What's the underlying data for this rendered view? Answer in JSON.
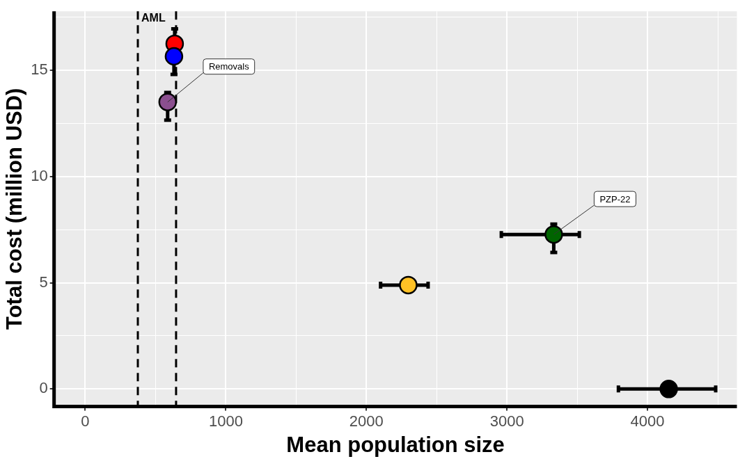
{
  "chart_data": {
    "type": "scatter",
    "xlabel": "Mean population size",
    "ylabel": "Total cost (million USD)",
    "x": [
      636,
      631,
      586,
      2298,
      3333,
      4151
    ],
    "series": [
      {
        "colors": [
          "#ff0000",
          "#0000ff",
          "#8b4f8f",
          "#ffc125",
          "#006400",
          "#000000"
        ],
        "values": [
          16.24,
          15.65,
          13.5,
          4.89,
          7.27,
          0
        ],
        "errors": [
          0.7,
          0.85,
          [
            12.65,
            13.95
          ],
          null,
          [
            6.42,
            7.76
          ],
          null
        ],
        "xerrors": [
          null,
          null,
          null,
          [
            2101,
            2439
          ],
          [
            2960,
            3515
          ],
          [
            3793,
            4485
          ]
        ]
      }
    ],
    "xlim": [
      -222,
      4636
    ],
    "ylim": [
      -0.82,
      17.77
    ],
    "xticks": [
      0,
      {
        "value": 500,
        "label": null
      },
      1000,
      {
        "value": 1500,
        "label": null
      },
      2000,
      {
        "value": 2500,
        "label": null
      },
      3000,
      {
        "value": 3500,
        "label": null
      },
      4000,
      {
        "value": 4500,
        "label": null
      }
    ],
    "yticks": [
      0,
      {
        "value": 2.5,
        "label": null
      },
      5,
      {
        "value": 7.5,
        "label": null
      },
      10,
      {
        "value": 12.5,
        "label": null
      },
      15,
      {
        "value": 17.5,
        "label": null
      }
    ],
    "grid": true,
    "legend": false,
    "marker": "circle",
    "ref_lines": [
      {
        "axis": "x",
        "value": 374,
        "label": "AML",
        "line_style": "dashed",
        "color": "#000000"
      },
      {
        "axis": "x",
        "value": 646,
        "label": null,
        "line_style": "dashed",
        "color": "#000000"
      }
    ],
    "annotations": [
      {
        "text": "Removals",
        "x": 586,
        "y": 13.5
      },
      {
        "text": "PZP-22",
        "x": 3333,
        "y": 7.27
      }
    ]
  }
}
